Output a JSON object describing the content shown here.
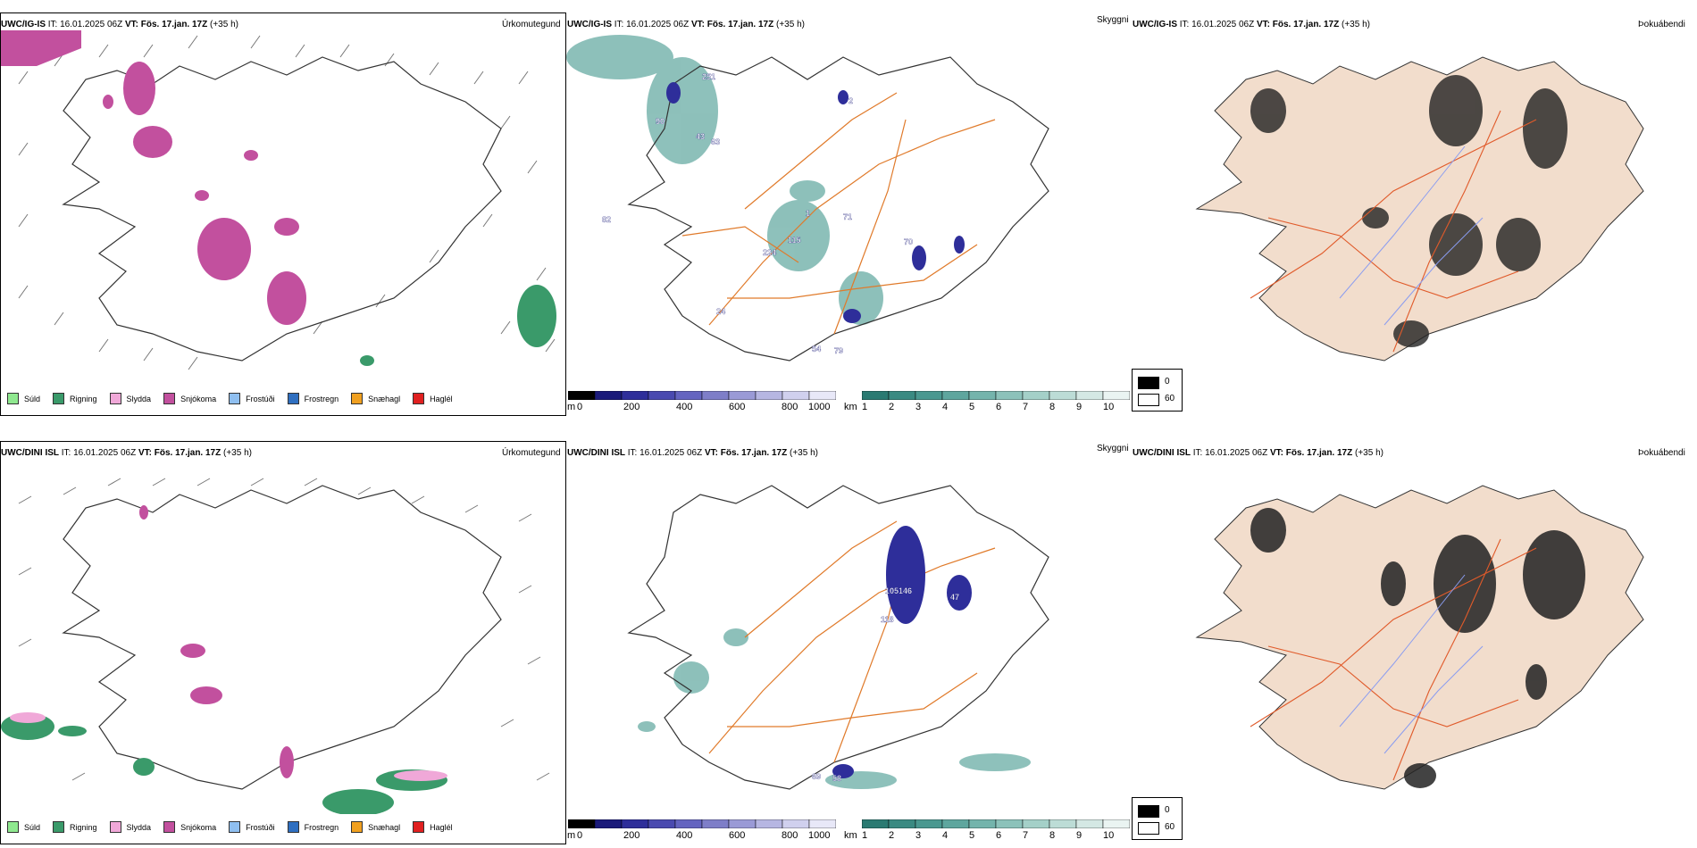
{
  "colors": {
    "land_outline": "#333333",
    "road": "#e07a2a",
    "river": "#8a9cf0",
    "land_fill": "#f2ddcc",
    "snow": "#c2509e",
    "rain": "#3a9a6a",
    "sleet": "#f0a8d8",
    "drizzle": "#8fe88f",
    "cloudbase_low": "#2a2a8a",
    "visibility_low": "#3a9a8a"
  },
  "top": {
    "precip": {
      "model": "UWC/IG-IS",
      "it_label": "IT:",
      "it_value": "16.01.2025 06Z",
      "vt_label": "VT:",
      "vt_value": "Fös. 17.jan. 17Z",
      "lead": "(+35 h)",
      "type_label": "Úrkomutegund"
    },
    "cloud": {
      "model": "UWC/IG-IS",
      "it_label": "IT:",
      "it_value": "16.01.2025 06Z",
      "vt_label": "VT:",
      "vt_value": "Fös. 17.jan. 17Z",
      "lead": "(+35 h)",
      "type_label": "Skyggni",
      "cloudbase_labels": [
        "251",
        "90",
        "43",
        "63",
        "82",
        "224",
        "115",
        "71",
        "70",
        "54",
        "79",
        "24",
        "2",
        "1"
      ]
    },
    "fog": {
      "model": "UWC/IG-IS",
      "it_label": "IT:",
      "it_value": "16.01.2025 06Z",
      "vt_label": "VT:",
      "vt_value": "Fös. 17.jan. 17Z",
      "lead": "(+35 h)",
      "type_label": "Þokuábendi"
    }
  },
  "bottom": {
    "precip": {
      "model": "UWC/DINI ISL",
      "it_label": "IT:",
      "it_value": "16.01.2025 06Z",
      "vt_label": "VT:",
      "vt_value": "Fös. 17.jan. 17Z",
      "lead": "(+35 h)",
      "type_label": "Úrkomutegund"
    },
    "cloud": {
      "model": "UWC/DINI ISL",
      "it_label": "IT:",
      "it_value": "16.01.2025 06Z",
      "vt_label": "VT:",
      "vt_value": "Fös. 17.jan. 17Z",
      "lead": "(+35 h)",
      "type_label": "Skyggni",
      "cloudbase_labels": [
        "105",
        "146",
        "118",
        "47",
        "69",
        "58"
      ]
    },
    "fog": {
      "model": "UWC/DINI ISL",
      "it_label": "IT:",
      "it_value": "16.01.2025 06Z",
      "vt_label": "VT:",
      "vt_value": "Fös. 17.jan. 17Z",
      "lead": "(+35 h)",
      "type_label": "Þokuábendi"
    }
  },
  "precip_legend": [
    {
      "label": "Súld",
      "color": "#8fe88f"
    },
    {
      "label": "Rigning",
      "color": "#3a9a6a"
    },
    {
      "label": "Slydda",
      "color": "#f0a8d8"
    },
    {
      "label": "Snjókoma",
      "color": "#c2509e"
    },
    {
      "label": "Frostúði",
      "color": "#8fbff0"
    },
    {
      "label": "Frostregn",
      "color": "#2f6fc0"
    },
    {
      "label": "Snæhagl",
      "color": "#f0a020"
    },
    {
      "label": "Haglél",
      "color": "#e02020"
    }
  ],
  "cloudbase_scale": {
    "unit": "m",
    "ticks": [
      "0",
      "200",
      "400",
      "600",
      "800",
      "1000"
    ],
    "colors": [
      "#000000",
      "#1a1a7a",
      "#2e2e9a",
      "#4a4ab0",
      "#6464c0",
      "#7e7ec8",
      "#9a9ad6",
      "#b6b6e2",
      "#d0d0ee",
      "#e8e8f8"
    ]
  },
  "visibility_scale": {
    "unit": "km",
    "ticks": [
      "1",
      "2",
      "3",
      "4",
      "5",
      "6",
      "7",
      "8",
      "9",
      "10"
    ],
    "colors": [
      "#2a7a72",
      "#3a8a82",
      "#4a9890",
      "#5ea69e",
      "#74b4ac",
      "#8cc2ba",
      "#a4d0c8",
      "#bcdcd6",
      "#d4e8e4",
      "#eaf4f2"
    ]
  },
  "fog_legend": [
    {
      "label": "0",
      "color": "#000000"
    },
    {
      "label": "60",
      "color": "#ffffff"
    }
  ]
}
